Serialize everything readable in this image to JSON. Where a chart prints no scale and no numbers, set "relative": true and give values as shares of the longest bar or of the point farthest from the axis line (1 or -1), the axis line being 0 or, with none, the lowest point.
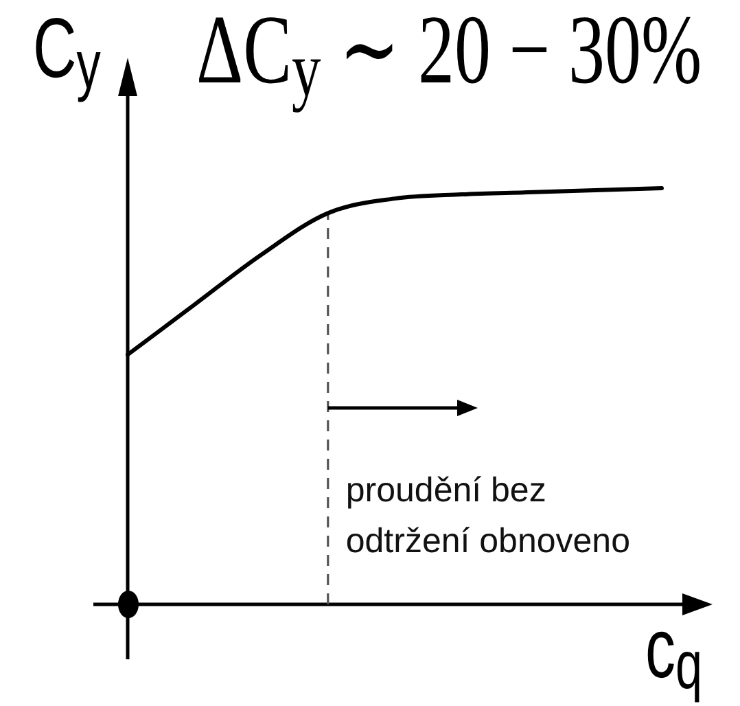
{
  "chart_data": {
    "type": "line",
    "title": "ΔC$_{y}$ ∼ 20 − 30%",
    "xlabel": "c$_{q}$",
    "ylabel": "C$_{y}$",
    "categories": [
      null,
      null,
      null,
      null,
      null,
      null,
      null,
      null,
      null
    ],
    "values": [
      0.6,
      0.72,
      0.84,
      0.94,
      0.975,
      0.985,
      0.99,
      0.995,
      1
    ],
    "color": "#000000",
    "relative": true,
    "marker": "none",
    "line_style": "solid",
    "tick_labels": false,
    "annotations": [
      "proudění bez odtržení obnoveno"
    ]
  }
}
